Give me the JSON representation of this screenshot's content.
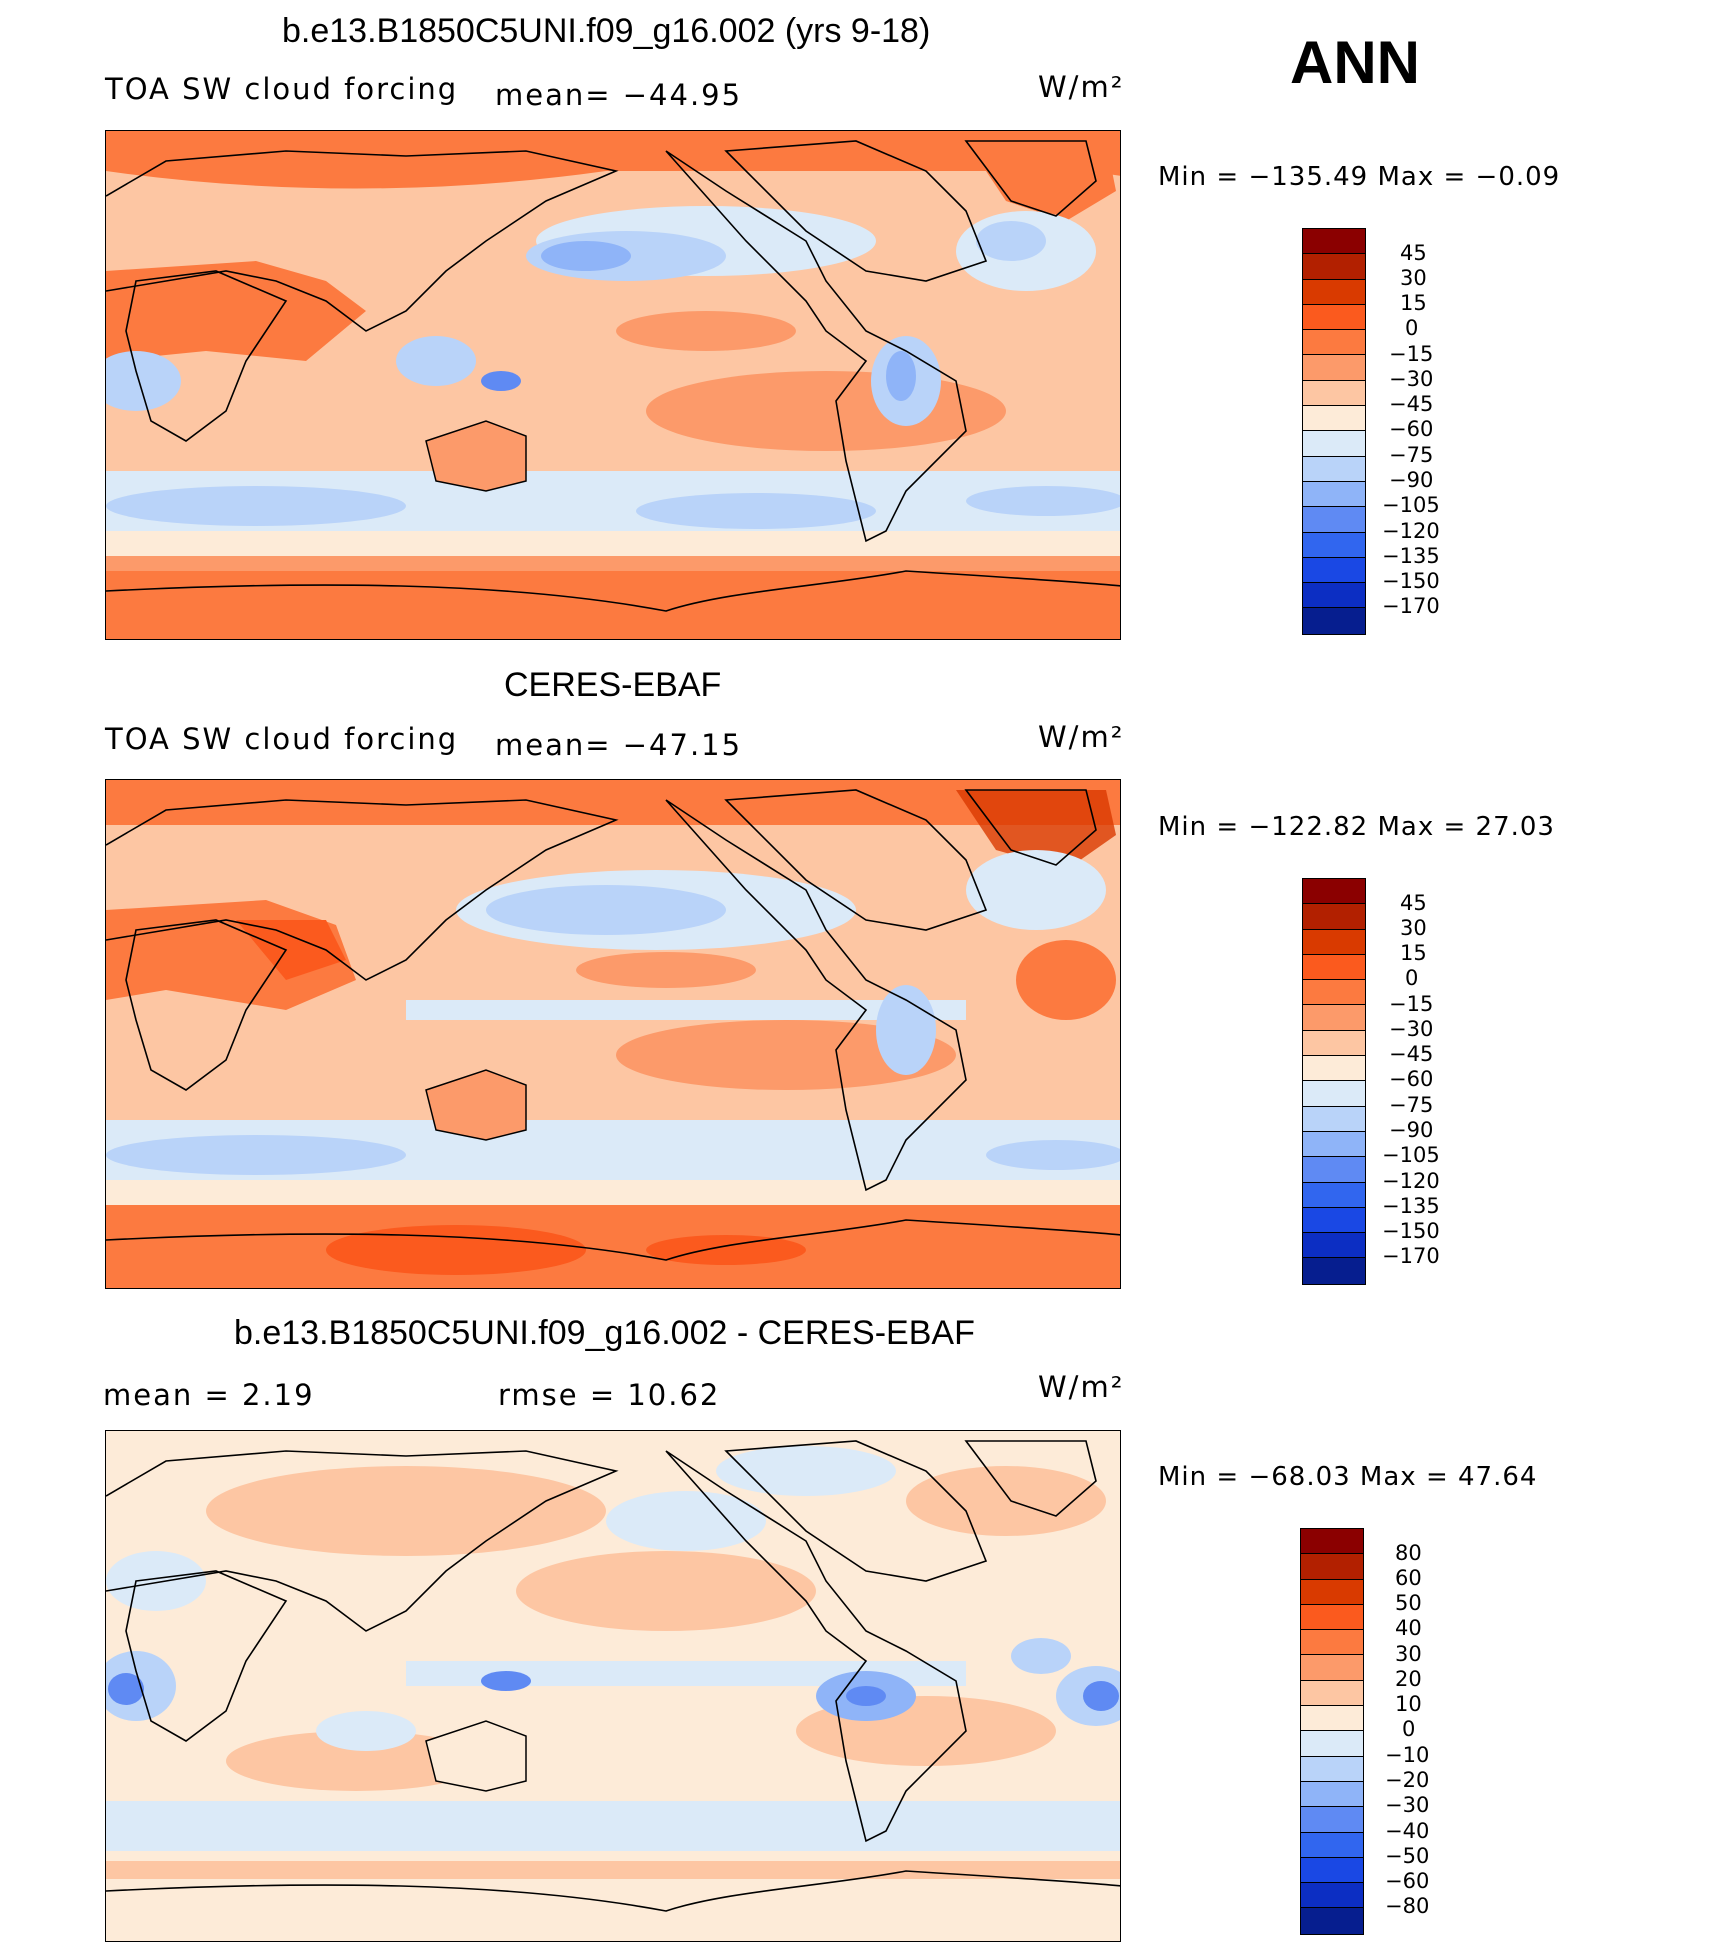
{
  "season": "ANN",
  "panels": [
    {
      "title": "b.e13.B1850C5UNI.f09_g16.002 (yrs 9-18)",
      "left_label": "TOA SW cloud forcing",
      "center_label": "mean=  −44.95",
      "units": "W/m²",
      "minmax": "Min  =  −135.49  Max  =    −0.09",
      "colorbar": {
        "labels": [
          "45",
          "30",
          "15",
          "0",
          "−15",
          "−30",
          "−45",
          "−60",
          "−75",
          "−90",
          "−105",
          "−120",
          "−135",
          "−150",
          "−170"
        ],
        "colors": [
          "#8b0000",
          "#b22000",
          "#d93a00",
          "#fb5a1e",
          "#fc7a40",
          "#fc9a6a",
          "#fdc6a3",
          "#fdebd8",
          "#dbeaf8",
          "#b9d3f9",
          "#8fb4f8",
          "#5f8af3",
          "#3166ef",
          "#1a48e4",
          "#0c2ec3",
          "#061e8f"
        ]
      },
      "data_note": "Annual mean TOA shortwave cloud forcing"
    },
    {
      "title": "CERES-EBAF",
      "left_label": "TOA SW cloud forcing",
      "center_label": "mean=  −47.15",
      "units": "W/m²",
      "minmax": "Min  =  −122.82  Max  =    27.03",
      "colorbar": {
        "labels": [
          "45",
          "30",
          "15",
          "0",
          "−15",
          "−30",
          "−45",
          "−60",
          "−75",
          "−90",
          "−105",
          "−120",
          "−135",
          "−150",
          "−170"
        ],
        "colors": [
          "#8b0000",
          "#b22000",
          "#d93a00",
          "#fb5a1e",
          "#fc7a40",
          "#fc9a6a",
          "#fdc6a3",
          "#fdebd8",
          "#dbeaf8",
          "#b9d3f9",
          "#8fb4f8",
          "#5f8af3",
          "#3166ef",
          "#1a48e4",
          "#0c2ec3",
          "#061e8f"
        ]
      }
    },
    {
      "title": "b.e13.B1850C5UNI.f09_g16.002 - CERES-EBAF",
      "left_label": "mean  =     2.19",
      "center_label": "rmse  =     10.62",
      "units": "W/m²",
      "minmax": "Min  =  −68.03  Max  =    47.64",
      "colorbar": {
        "labels": [
          "80",
          "60",
          "50",
          "40",
          "30",
          "20",
          "10",
          "0",
          "−10",
          "−20",
          "−30",
          "−40",
          "−50",
          "−60",
          "−80"
        ],
        "colors": [
          "#8b0000",
          "#b22000",
          "#d93a00",
          "#fb5a1e",
          "#fc7a40",
          "#fc9a6a",
          "#fdc6a3",
          "#fdebd8",
          "#dbeaf8",
          "#b9d3f9",
          "#8fb4f8",
          "#5f8af3",
          "#3166ef",
          "#1a48e4",
          "#0c2ec3",
          "#061e8f"
        ]
      }
    }
  ]
}
